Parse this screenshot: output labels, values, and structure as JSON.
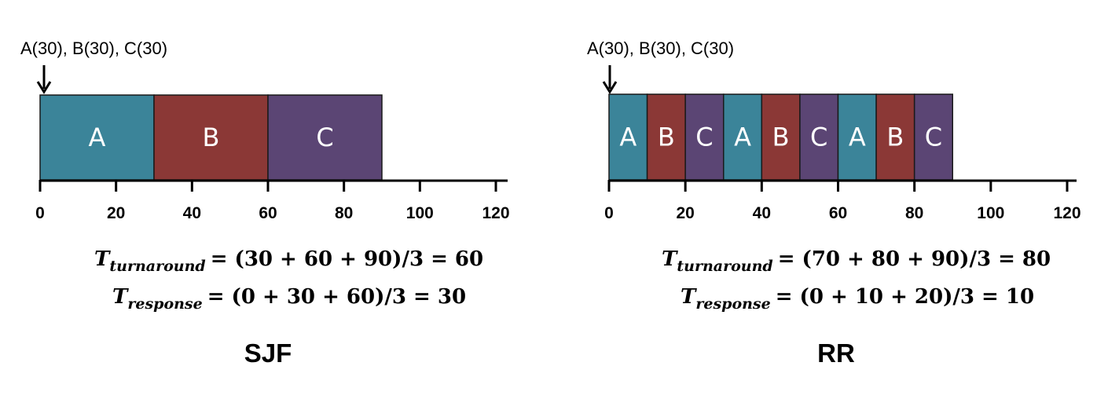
{
  "colors": {
    "A": "#3b8499",
    "B": "#8b3836",
    "C": "#5b4574",
    "outline": "#1a1a1a"
  },
  "diagrams": [
    {
      "id": "sjf",
      "arrival_label": "A(30), B(30), C(30)",
      "ticks": [
        "0",
        "20",
        "40",
        "60",
        "80",
        "100",
        "120"
      ],
      "axis_max": 120,
      "schedule": [
        {
          "job": "A",
          "start": 0,
          "end": 30
        },
        {
          "job": "B",
          "start": 30,
          "end": 60
        },
        {
          "job": "C",
          "start": 60,
          "end": 90
        }
      ],
      "turnaround": {
        "symbol": "T",
        "subscript": "turnaround",
        "expression": "= (30 + 60 + 90)/3 = 60"
      },
      "response": {
        "symbol": "T",
        "subscript": "response",
        "expression": "= (0 + 30 + 60)/3 = 30"
      },
      "caption": "SJF"
    },
    {
      "id": "rr",
      "arrival_label": "A(30), B(30), C(30)",
      "ticks": [
        "0",
        "20",
        "40",
        "60",
        "80",
        "100",
        "120"
      ],
      "axis_max": 120,
      "schedule": [
        {
          "job": "A",
          "start": 0,
          "end": 10
        },
        {
          "job": "B",
          "start": 10,
          "end": 20
        },
        {
          "job": "C",
          "start": 20,
          "end": 30
        },
        {
          "job": "A",
          "start": 30,
          "end": 40
        },
        {
          "job": "B",
          "start": 40,
          "end": 50
        },
        {
          "job": "C",
          "start": 50,
          "end": 60
        },
        {
          "job": "A",
          "start": 60,
          "end": 70
        },
        {
          "job": "B",
          "start": 70,
          "end": 80
        },
        {
          "job": "C",
          "start": 80,
          "end": 90
        }
      ],
      "turnaround": {
        "symbol": "T",
        "subscript": "turnaround",
        "expression": "= (70 + 80 + 90)/3 = 80"
      },
      "response": {
        "symbol": "T",
        "subscript": "response",
        "expression": "= (0 + 10 + 20)/3 = 10"
      },
      "caption": "RR"
    }
  ]
}
